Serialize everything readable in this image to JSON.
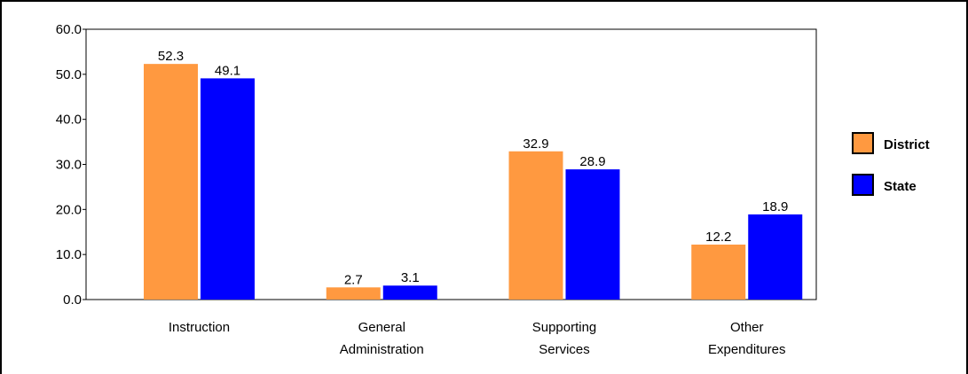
{
  "header": {
    "clipped_title_text": ""
  },
  "chart_data": {
    "type": "bar",
    "title": "",
    "xlabel": "",
    "ylabel": "",
    "ylim": [
      0,
      60
    ],
    "y_ticks": [
      "0.0",
      "10.0",
      "20.0",
      "30.0",
      "40.0",
      "50.0",
      "60.0"
    ],
    "categories": [
      [
        "Instruction"
      ],
      [
        "General",
        "Administration"
      ],
      [
        "Supporting",
        "Services"
      ],
      [
        "Other",
        "Expenditures"
      ]
    ],
    "series": [
      {
        "name": "District",
        "color": "#FF9940",
        "values": [
          52.3,
          2.7,
          32.9,
          12.2
        ],
        "labels": [
          "52.3",
          "2.7",
          "32.9",
          "12.2"
        ]
      },
      {
        "name": "State",
        "color": "#0000FF",
        "values": [
          49.1,
          3.1,
          28.9,
          18.9
        ],
        "labels": [
          "49.1",
          "3.1",
          "28.9",
          "18.9"
        ]
      }
    ],
    "legend_position": "right",
    "grid": false
  }
}
